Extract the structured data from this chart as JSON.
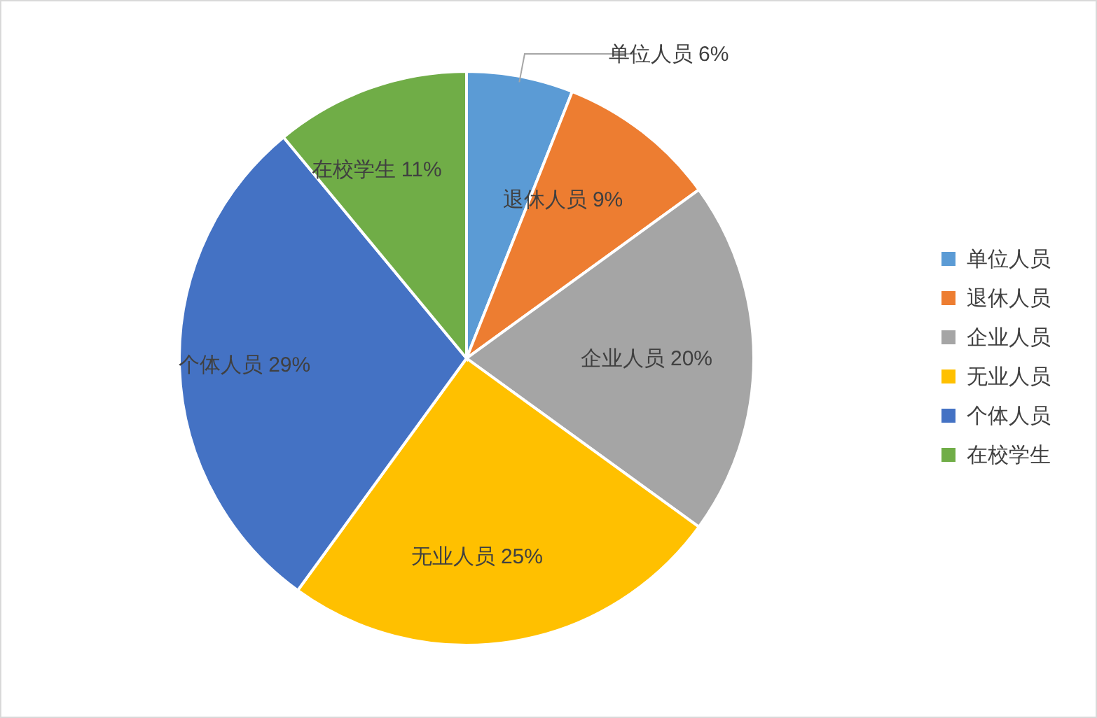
{
  "chart_data": {
    "type": "pie",
    "categories": [
      "单位人员",
      "退休人员",
      "企业人员",
      "无业人员",
      "个体人员",
      "在校学生"
    ],
    "values": [
      6,
      9,
      20,
      25,
      29,
      11
    ],
    "colors": [
      "#5b9bd5",
      "#ed7d31",
      "#a5a5a5",
      "#ffc000",
      "#4472c4",
      "#70ad47"
    ],
    "value_labels": [
      "6%",
      "9%",
      "20%",
      "25%",
      "29%",
      "11%"
    ],
    "legend": "right"
  }
}
